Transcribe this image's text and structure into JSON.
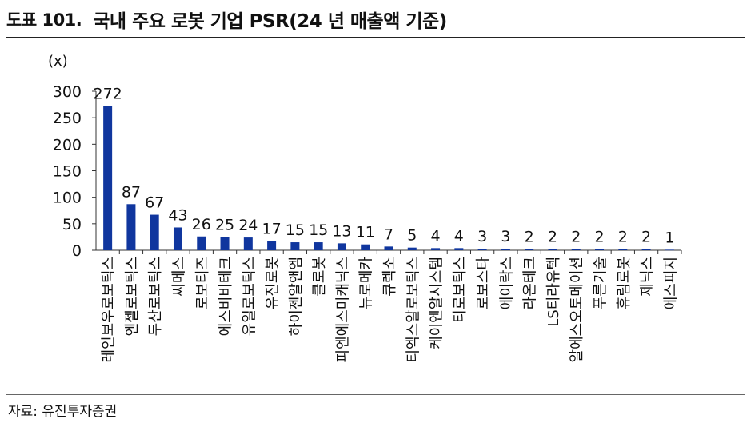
{
  "figure": {
    "label": "도표 101.",
    "title": "국내 주요 로봇 기업 PSR(24 년 매출액 기준)",
    "source": "자료: 유진투자증권"
  },
  "colors": {
    "bar": "#10369E",
    "axis": "#333333",
    "text": "#111111"
  },
  "chart_data": {
    "type": "bar",
    "title": "국내 주요 로봇 기업 PSR(24 년 매출액 기준)",
    "unit": "(x)",
    "ylim": [
      0,
      300
    ],
    "yticks": [
      0,
      50,
      100,
      150,
      200,
      250,
      300
    ],
    "grid": false,
    "legend": "none",
    "categories": [
      "레인보우로보틱스",
      "엔젤로보틱스",
      "두산로보틱스",
      "씨메스",
      "로보티즈",
      "에스비비테크",
      "유일로보틱스",
      "유진로봇",
      "하이젠알앤엠",
      "클로봇",
      "피엔에스미캐닉스",
      "뉴로메카",
      "큐렉소",
      "티엑스알로보틱스",
      "케이엔알시스템",
      "티로보틱스",
      "로보스타",
      "에이락스",
      "라온테크",
      "LS티라유텍",
      "알에스오토메이션",
      "푸른기술",
      "휴림로봇",
      "제닉스",
      "에스피지"
    ],
    "values": [
      272,
      87,
      67,
      43,
      26,
      25,
      24,
      17,
      15,
      15,
      13,
      11,
      7,
      5,
      4,
      4,
      3,
      3,
      2,
      2,
      2,
      2,
      2,
      2,
      1
    ]
  }
}
